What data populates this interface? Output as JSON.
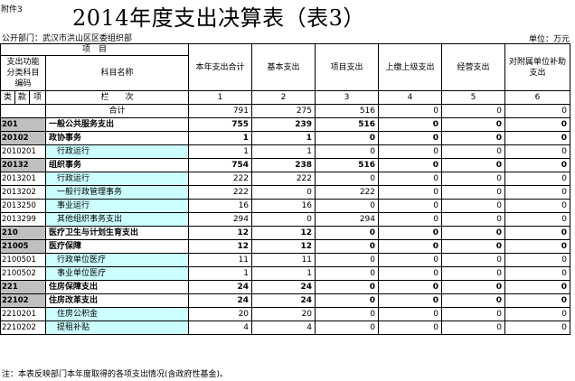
{
  "annex": "附件3",
  "title": "2014年度支出决算表（表3）",
  "dept": "公开部门：武汉市洪山区区委组织部",
  "unit": "单位：万元",
  "headers": {
    "item": "项　目",
    "code_col": "支出功能分类科目编码",
    "name_col": "科目名称",
    "col1": "本年支出合计",
    "col2": "基本支出",
    "col3": "项目支出",
    "col4": "上缴上级支出",
    "col5": "经营支出",
    "col6": "对附属单位补助支出",
    "lei": "类",
    "kuan": "款",
    "xiang": "项",
    "lanci": "栏　　次",
    "n1": "1",
    "n2": "2",
    "n3": "3",
    "n4": "4",
    "n5": "5",
    "n6": "6"
  },
  "rows": [
    {
      "code": "",
      "name": "合计",
      "v": [
        "791",
        "275",
        "516",
        "0",
        "0",
        "0"
      ],
      "kind": "total"
    },
    {
      "code": "201",
      "name": "一般公共服务支出",
      "v": [
        "755",
        "239",
        "516",
        "0",
        "0",
        "0"
      ],
      "kind": "group"
    },
    {
      "code": "20102",
      "name": "政协事务",
      "v": [
        "1",
        "1",
        "0",
        "0",
        "0",
        "0"
      ],
      "kind": "group"
    },
    {
      "code": "2010201",
      "name": "行政运行",
      "v": [
        "1",
        "1",
        "0",
        "0",
        "0",
        "0"
      ],
      "kind": "item"
    },
    {
      "code": "20132",
      "name": "组织事务",
      "v": [
        "754",
        "238",
        "516",
        "0",
        "0",
        "0"
      ],
      "kind": "group"
    },
    {
      "code": "2013201",
      "name": "行政运行",
      "v": [
        "222",
        "222",
        "0",
        "0",
        "0",
        "0"
      ],
      "kind": "item"
    },
    {
      "code": "2013202",
      "name": "一般行政管理事务",
      "v": [
        "222",
        "0",
        "222",
        "0",
        "0",
        "0"
      ],
      "kind": "item"
    },
    {
      "code": "2013250",
      "name": "事业运行",
      "v": [
        "16",
        "16",
        "0",
        "0",
        "0",
        "0"
      ],
      "kind": "item"
    },
    {
      "code": "2013299",
      "name": "其他组织事务支出",
      "v": [
        "294",
        "0",
        "294",
        "0",
        "0",
        "0"
      ],
      "kind": "item"
    },
    {
      "code": "210",
      "name": "医疗卫生与计划生育支出",
      "v": [
        "12",
        "12",
        "0",
        "0",
        "0",
        "0"
      ],
      "kind": "group"
    },
    {
      "code": "21005",
      "name": "医疗保障",
      "v": [
        "12",
        "12",
        "0",
        "0",
        "0",
        "0"
      ],
      "kind": "group"
    },
    {
      "code": "2100501",
      "name": "行政单位医疗",
      "v": [
        "11",
        "11",
        "0",
        "0",
        "0",
        "0"
      ],
      "kind": "item"
    },
    {
      "code": "2100502",
      "name": "事业单位医疗",
      "v": [
        "1",
        "1",
        "0",
        "0",
        "0",
        "0"
      ],
      "kind": "item"
    },
    {
      "code": "221",
      "name": "住房保障支出",
      "v": [
        "24",
        "24",
        "0",
        "0",
        "0",
        "0"
      ],
      "kind": "group"
    },
    {
      "code": "22102",
      "name": "住房改革支出",
      "v": [
        "24",
        "24",
        "0",
        "0",
        "0",
        "0"
      ],
      "kind": "group"
    },
    {
      "code": "2210201",
      "name": "住房公积金",
      "v": [
        "20",
        "20",
        "0",
        "0",
        "0",
        "0"
      ],
      "kind": "item"
    },
    {
      "code": "2210202",
      "name": "提租补贴",
      "v": [
        "4",
        "4",
        "0",
        "0",
        "0",
        "0"
      ],
      "kind": "item"
    }
  ],
  "footer": "注：本表反映部门本年度取得的各项支出情况(含政府性基金)。"
}
